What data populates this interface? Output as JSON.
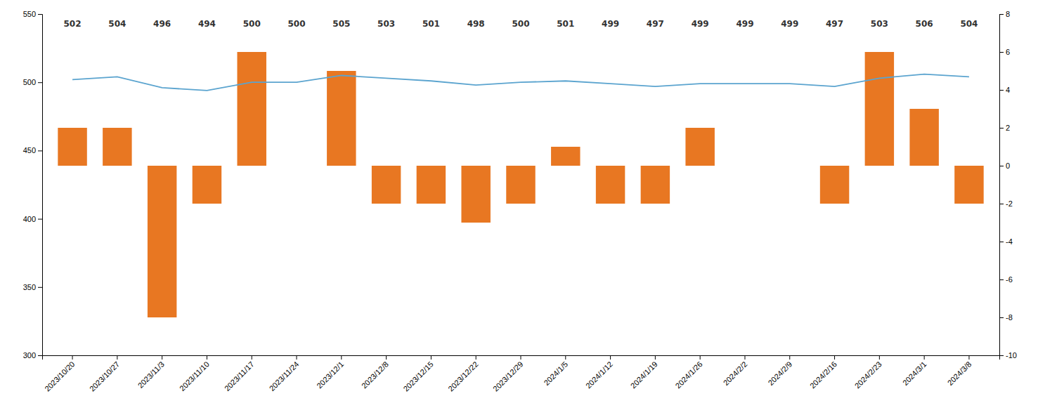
{
  "chart_data": {
    "type": "bar",
    "categories": [
      "2023/10/20",
      "2023/10/27",
      "2023/11/3",
      "2023/11/10",
      "2023/11/17",
      "2023/11/24",
      "2023/12/1",
      "2023/12/8",
      "2023/12/15",
      "2023/12/22",
      "2023/12/29",
      "2024/1/5",
      "2024/1/12",
      "2024/1/19",
      "2024/1/26",
      "2024/2/2",
      "2024/2/9",
      "2024/2/16",
      "2024/2/23",
      "2024/3/1",
      "2024/3/8"
    ],
    "series": [
      {
        "type": "bar",
        "axis": "y2",
        "color": "#E87722",
        "values": [
          2,
          2,
          -8,
          -2,
          6,
          0,
          5,
          -2,
          -2,
          -3,
          -2,
          1,
          -2,
          -2,
          2,
          0,
          0,
          -2,
          6,
          3,
          -2
        ]
      },
      {
        "type": "line",
        "color": "#5BA4CF",
        "data_labels": true,
        "values": [
          502,
          504,
          496,
          494,
          500,
          500,
          505,
          503,
          501,
          498,
          500,
          501,
          499,
          497,
          499,
          499,
          499,
          497,
          503,
          506,
          504
        ]
      }
    ],
    "ylim": [
      300,
      550
    ],
    "yticks": [
      300,
      350,
      400,
      450,
      500,
      550
    ],
    "y2lim": [
      -10,
      8
    ],
    "y2ticks": [
      -10,
      -8,
      -6,
      -4,
      -2,
      0,
      2,
      4,
      6,
      8
    ],
    "grid": false
  }
}
